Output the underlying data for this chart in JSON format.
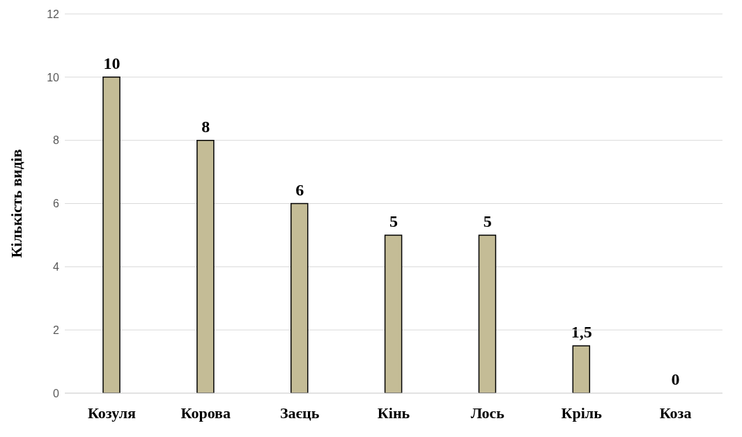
{
  "chart_data": {
    "type": "bar",
    "ylabel": "Кількість видів",
    "categories": [
      "Козуля",
      "Корова",
      "Заєць",
      "Кінь",
      "Лось",
      "Кріль",
      "Коза"
    ],
    "values": [
      10,
      8,
      6,
      5,
      5,
      1.5,
      0
    ],
    "value_labels": [
      "10",
      "8",
      "6",
      "5",
      "5",
      "1,5",
      "0"
    ],
    "color": "#c4bc96",
    "ylim": [
      0,
      12
    ],
    "yticks": [
      0,
      2,
      4,
      6,
      8,
      10,
      12
    ],
    "grid": "y"
  }
}
